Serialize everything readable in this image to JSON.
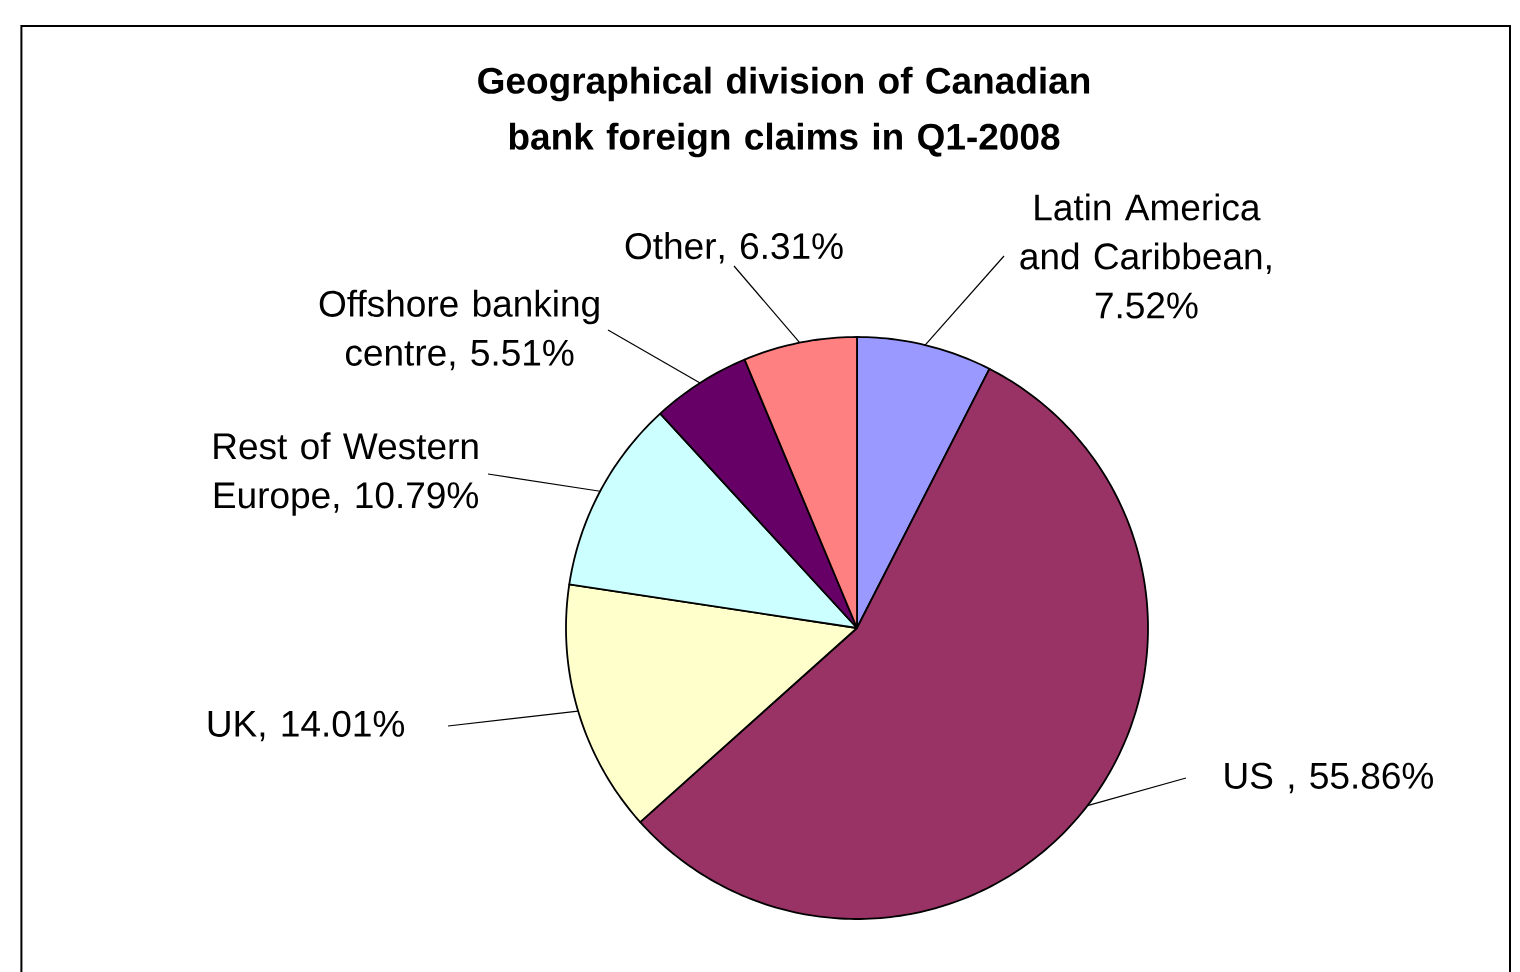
{
  "chart_data": {
    "type": "pie",
    "title": "Geographical division of Canadian bank foreign claims in Q1-2008",
    "categories": [
      "Latin America and Caribbean",
      "US ",
      "UK",
      "Rest of Western Europe",
      "Offshore banking centre",
      "Other"
    ],
    "values": [
      7.52,
      55.86,
      14.01,
      10.79,
      5.51,
      6.31
    ],
    "value_labels": [
      ", 7.52%",
      ", 55.86%",
      ", 14.01%",
      ", 10.79%",
      ", 5.51%",
      ", 6.31%"
    ],
    "colors": [
      "#9999ff",
      "#993366",
      "#ffffcc",
      "#ccffff",
      "#660066",
      "#ff8080"
    ]
  }
}
